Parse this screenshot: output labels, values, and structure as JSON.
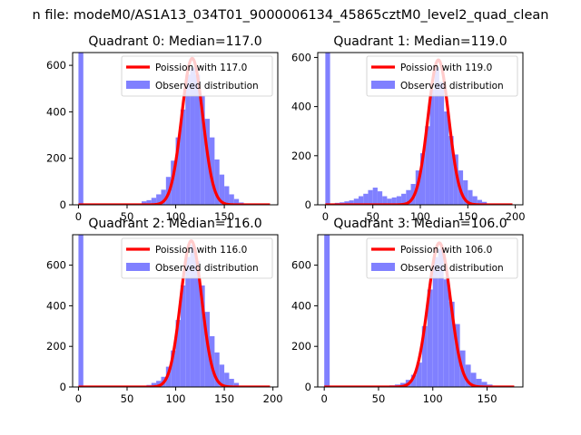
{
  "figure": {
    "suptitle": "n file: modeM0/AS1A13_034T01_9000006134_45865cztM0_level2_quad_clean"
  },
  "colors": {
    "histogram": "#8080ff",
    "poisson_line": "#ff0000",
    "axes": "#000000",
    "background": "#ffffff"
  },
  "chart_data": [
    {
      "type": "bar",
      "title": "Quadrant 0: Median=117.0",
      "xlim": [
        -6,
        205
      ],
      "ylim": [
        0,
        655
      ],
      "xticks": [
        0,
        50,
        100,
        150
      ],
      "yticks": [
        0,
        200,
        400,
        600
      ],
      "legend_placement": "upper right",
      "bin_width": 5,
      "series": [
        {
          "name": "Poission with 117.0",
          "kind": "line",
          "mean": 117.0,
          "peak": 630,
          "x_range": [
            0,
            197
          ]
        },
        {
          "name": "Observed distribution",
          "kind": "histogram",
          "bins": [
            {
              "x": 0,
              "y": 655
            },
            {
              "x": 65,
              "y": 15
            },
            {
              "x": 70,
              "y": 20
            },
            {
              "x": 75,
              "y": 30
            },
            {
              "x": 80,
              "y": 45
            },
            {
              "x": 85,
              "y": 65
            },
            {
              "x": 90,
              "y": 120
            },
            {
              "x": 95,
              "y": 190
            },
            {
              "x": 100,
              "y": 290
            },
            {
              "x": 105,
              "y": 410
            },
            {
              "x": 110,
              "y": 560
            },
            {
              "x": 115,
              "y": 590
            },
            {
              "x": 120,
              "y": 560
            },
            {
              "x": 125,
              "y": 470
            },
            {
              "x": 130,
              "y": 370
            },
            {
              "x": 135,
              "y": 290
            },
            {
              "x": 140,
              "y": 195
            },
            {
              "x": 145,
              "y": 130
            },
            {
              "x": 150,
              "y": 80
            },
            {
              "x": 155,
              "y": 45
            },
            {
              "x": 160,
              "y": 25
            },
            {
              "x": 165,
              "y": 10
            }
          ]
        }
      ]
    },
    {
      "type": "bar",
      "title": "Quadrant 1: Median=119.0",
      "xlim": [
        -8,
        208
      ],
      "ylim": [
        0,
        620
      ],
      "xticks": [
        0,
        50,
        100,
        150,
        200
      ],
      "yticks": [
        0,
        200,
        400,
        600
      ],
      "legend_placement": "upper right",
      "bin_width": 5,
      "series": [
        {
          "name": "Poission with 119.0",
          "kind": "line",
          "mean": 119.0,
          "peak": 590,
          "x_range": [
            0,
            197
          ]
        },
        {
          "name": "Observed distribution",
          "kind": "histogram",
          "bins": [
            {
              "x": 0,
              "y": 620
            },
            {
              "x": 5,
              "y": 5
            },
            {
              "x": 10,
              "y": 8
            },
            {
              "x": 15,
              "y": 10
            },
            {
              "x": 20,
              "y": 14
            },
            {
              "x": 25,
              "y": 18
            },
            {
              "x": 30,
              "y": 25
            },
            {
              "x": 35,
              "y": 35
            },
            {
              "x": 40,
              "y": 45
            },
            {
              "x": 45,
              "y": 60
            },
            {
              "x": 50,
              "y": 70
            },
            {
              "x": 55,
              "y": 55
            },
            {
              "x": 60,
              "y": 35
            },
            {
              "x": 65,
              "y": 25
            },
            {
              "x": 70,
              "y": 30
            },
            {
              "x": 75,
              "y": 35
            },
            {
              "x": 80,
              "y": 45
            },
            {
              "x": 85,
              "y": 60
            },
            {
              "x": 90,
              "y": 85
            },
            {
              "x": 95,
              "y": 140
            },
            {
              "x": 100,
              "y": 210
            },
            {
              "x": 105,
              "y": 320
            },
            {
              "x": 110,
              "y": 470
            },
            {
              "x": 115,
              "y": 560
            },
            {
              "x": 120,
              "y": 500
            },
            {
              "x": 125,
              "y": 380
            },
            {
              "x": 130,
              "y": 280
            },
            {
              "x": 135,
              "y": 205
            },
            {
              "x": 140,
              "y": 140
            },
            {
              "x": 145,
              "y": 100
            },
            {
              "x": 150,
              "y": 60
            },
            {
              "x": 155,
              "y": 35
            },
            {
              "x": 160,
              "y": 20
            },
            {
              "x": 165,
              "y": 12
            }
          ]
        }
      ]
    },
    {
      "type": "bar",
      "title": "Quadrant 2: Median=116.0",
      "xlim": [
        -6,
        205
      ],
      "ylim": [
        0,
        750
      ],
      "xticks": [
        0,
        50,
        100,
        150,
        200
      ],
      "yticks": [
        0,
        200,
        400,
        600
      ],
      "legend_placement": "upper right",
      "bin_width": 5,
      "series": [
        {
          "name": "Poission with 116.0",
          "kind": "line",
          "mean": 116.0,
          "peak": 720,
          "x_range": [
            0,
            197
          ]
        },
        {
          "name": "Observed distribution",
          "kind": "histogram",
          "bins": [
            {
              "x": 0,
              "y": 750
            },
            {
              "x": 70,
              "y": 10
            },
            {
              "x": 75,
              "y": 20
            },
            {
              "x": 80,
              "y": 30
            },
            {
              "x": 85,
              "y": 50
            },
            {
              "x": 90,
              "y": 100
            },
            {
              "x": 95,
              "y": 180
            },
            {
              "x": 100,
              "y": 330
            },
            {
              "x": 105,
              "y": 500
            },
            {
              "x": 110,
              "y": 640
            },
            {
              "x": 115,
              "y": 700
            },
            {
              "x": 120,
              "y": 620
            },
            {
              "x": 125,
              "y": 500
            },
            {
              "x": 130,
              "y": 370
            },
            {
              "x": 135,
              "y": 250
            },
            {
              "x": 140,
              "y": 170
            },
            {
              "x": 145,
              "y": 110
            },
            {
              "x": 150,
              "y": 70
            },
            {
              "x": 155,
              "y": 40
            },
            {
              "x": 160,
              "y": 20
            }
          ]
        }
      ]
    },
    {
      "type": "bar",
      "title": "Quadrant 3: Median=106.0",
      "xlim": [
        -6,
        183
      ],
      "ylim": [
        0,
        750
      ],
      "xticks": [
        0,
        50,
        100,
        150
      ],
      "yticks": [
        0,
        200,
        400,
        600
      ],
      "legend_placement": "upper right",
      "bin_width": 5,
      "series": [
        {
          "name": "Poission with 106.0",
          "kind": "line",
          "mean": 106.0,
          "peak": 710,
          "x_range": [
            0,
            175
          ]
        },
        {
          "name": "Observed distribution",
          "kind": "histogram",
          "bins": [
            {
              "x": 0,
              "y": 750
            },
            {
              "x": 60,
              "y": 8
            },
            {
              "x": 65,
              "y": 12
            },
            {
              "x": 70,
              "y": 20
            },
            {
              "x": 75,
              "y": 35
            },
            {
              "x": 80,
              "y": 60
            },
            {
              "x": 85,
              "y": 120
            },
            {
              "x": 90,
              "y": 300
            },
            {
              "x": 95,
              "y": 480
            },
            {
              "x": 100,
              "y": 640
            },
            {
              "x": 105,
              "y": 680
            },
            {
              "x": 110,
              "y": 530
            },
            {
              "x": 115,
              "y": 420
            },
            {
              "x": 120,
              "y": 310
            },
            {
              "x": 125,
              "y": 180
            },
            {
              "x": 130,
              "y": 110
            },
            {
              "x": 135,
              "y": 70
            },
            {
              "x": 140,
              "y": 40
            },
            {
              "x": 145,
              "y": 25
            },
            {
              "x": 150,
              "y": 12
            }
          ]
        }
      ]
    }
  ]
}
